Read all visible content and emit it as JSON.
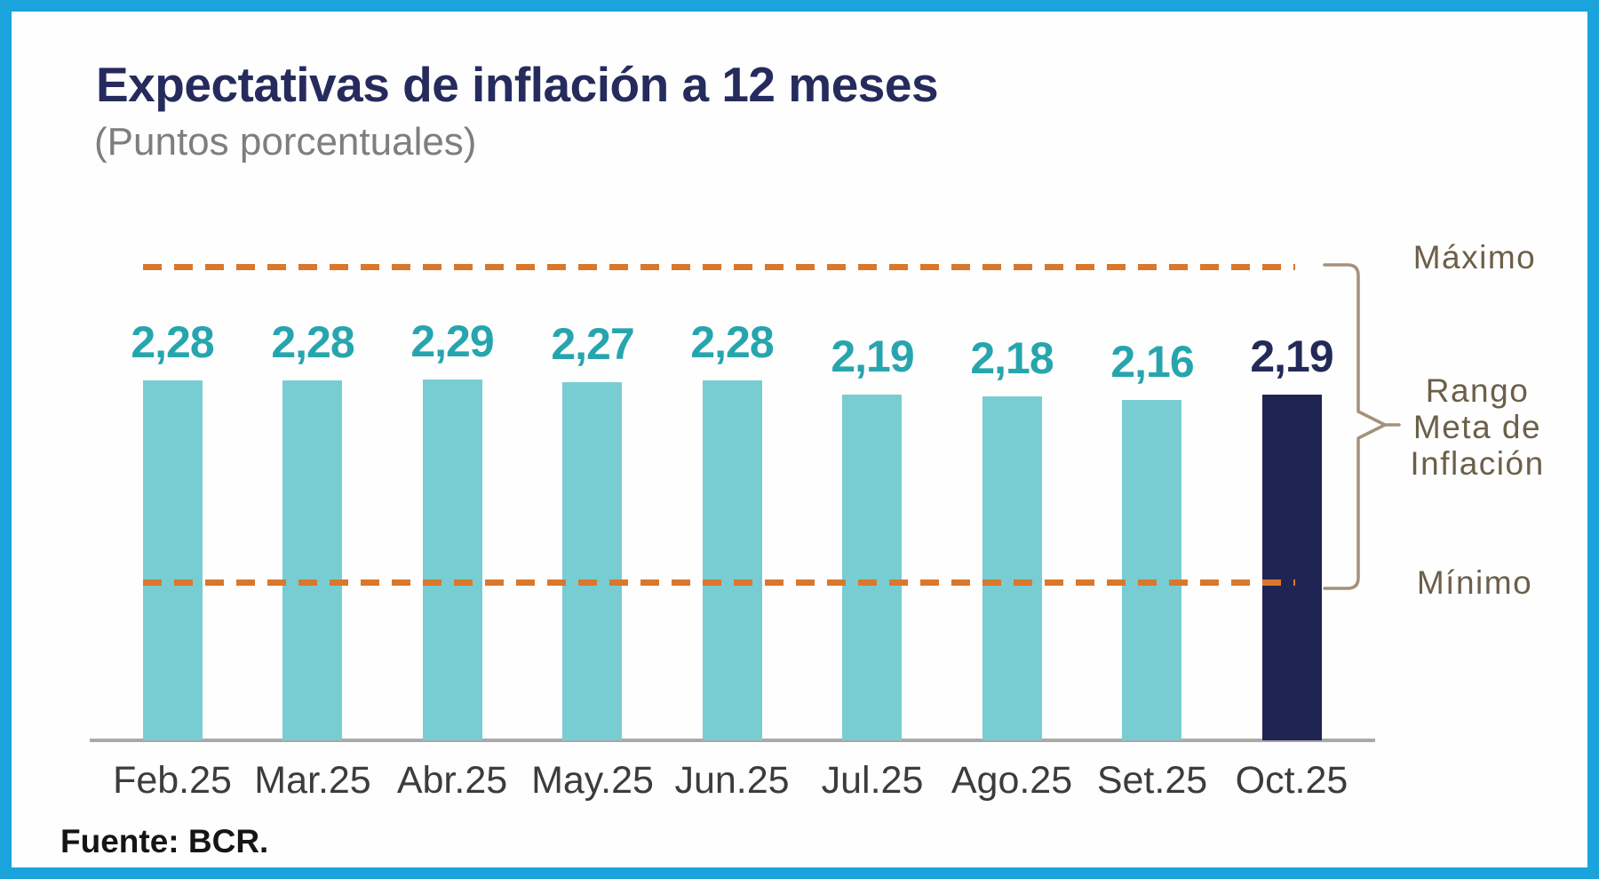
{
  "frame": {
    "border_color": "#1BA3DC",
    "background": "#FEFEFE"
  },
  "chart_data": {
    "type": "bar",
    "title": "Expectativas de inflación a 12 meses",
    "subtitle": "(Puntos porcentuales)",
    "categories": [
      "Feb.25",
      "Mar.25",
      "Abr.25",
      "May.25",
      "Jun.25",
      "Jul.25",
      "Ago.25",
      "Set.25",
      "Oct.25"
    ],
    "values": [
      2.28,
      2.28,
      2.29,
      2.27,
      2.28,
      2.19,
      2.18,
      2.16,
      2.19
    ],
    "value_labels": [
      "2,28",
      "2,28",
      "2,29",
      "2,27",
      "2,28",
      "2,19",
      "2,18",
      "2,16",
      "2,19"
    ],
    "highlight_index": 8,
    "bar_color": "#78CDD3",
    "highlight_bar_color": "#1F2452",
    "value_label_color": "#27A5AE",
    "highlight_value_label_color": "#222A59",
    "reference_lines": [
      {
        "label": "Máximo",
        "value": 3.0,
        "style": "dashed",
        "color": "#D9782D"
      },
      {
        "label": "Mínimo",
        "value": 1.0,
        "style": "dashed",
        "color": "#D9782D"
      }
    ],
    "range_annotation": {
      "maximo": "Máximo",
      "rango": "Rango\nMeta de\nInflación",
      "minimo": "Mínimo"
    },
    "ylabel": "",
    "xlabel": "",
    "ylim": [
      0,
      3.2
    ],
    "grid": false,
    "y_axis_visible": false,
    "legend": "none"
  },
  "source": {
    "text": "Fuente: BCR."
  }
}
